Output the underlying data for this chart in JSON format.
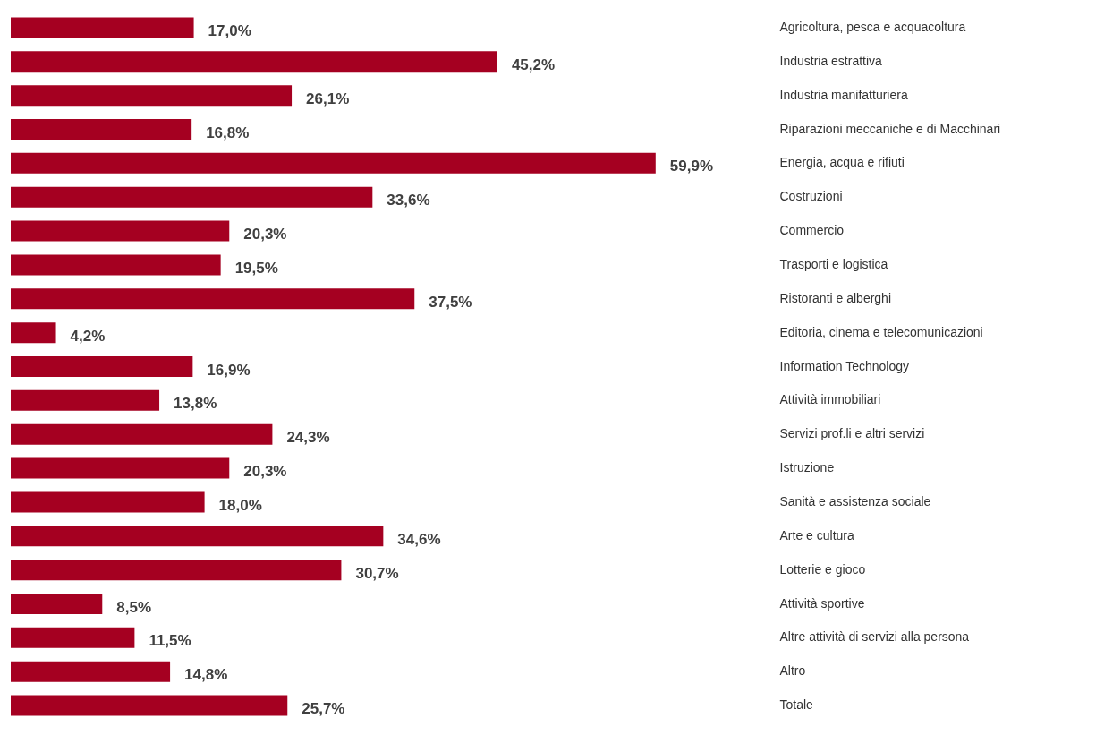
{
  "chart_data": {
    "type": "bar",
    "orientation": "horizontal",
    "color": "#a50021",
    "categories": [
      "Agricoltura, pesca e acquacoltura",
      "Industria estrattiva",
      "Industria manifatturiera",
      "Riparazioni meccaniche e di Macchinari",
      "Energia, acqua e rifiuti",
      "Costruzioni",
      "Commercio",
      "Trasporti e logistica",
      "Ristoranti e alberghi",
      "Editoria, cinema e telecomunicazioni",
      "Information Technology",
      "Attività immobiliari",
      "Servizi prof.li e altri servizi",
      "Istruzione",
      "Sanità e assistenza sociale",
      "Arte e cultura",
      "Lotterie e gioco",
      "Attività sportive",
      "Altre attività di servizi alla persona",
      "Altro",
      "Totale"
    ],
    "values": [
      17.0,
      45.2,
      26.1,
      16.8,
      59.9,
      33.6,
      20.3,
      19.5,
      37.5,
      4.2,
      16.9,
      13.8,
      24.3,
      20.3,
      18.0,
      34.6,
      30.7,
      8.5,
      11.5,
      14.8,
      25.7
    ],
    "value_labels": [
      "17,0%",
      "45,2%",
      "26,1%",
      "16,8%",
      "59,9%",
      "33,6%",
      "20,3%",
      "19,5%",
      "37,5%",
      "4,2%",
      "16,9%",
      "13,8%",
      "24,3%",
      "20,3%",
      "18,0%",
      "34,6%",
      "30,7%",
      "8,5%",
      "11,5%",
      "14,8%",
      "25,7%"
    ]
  }
}
